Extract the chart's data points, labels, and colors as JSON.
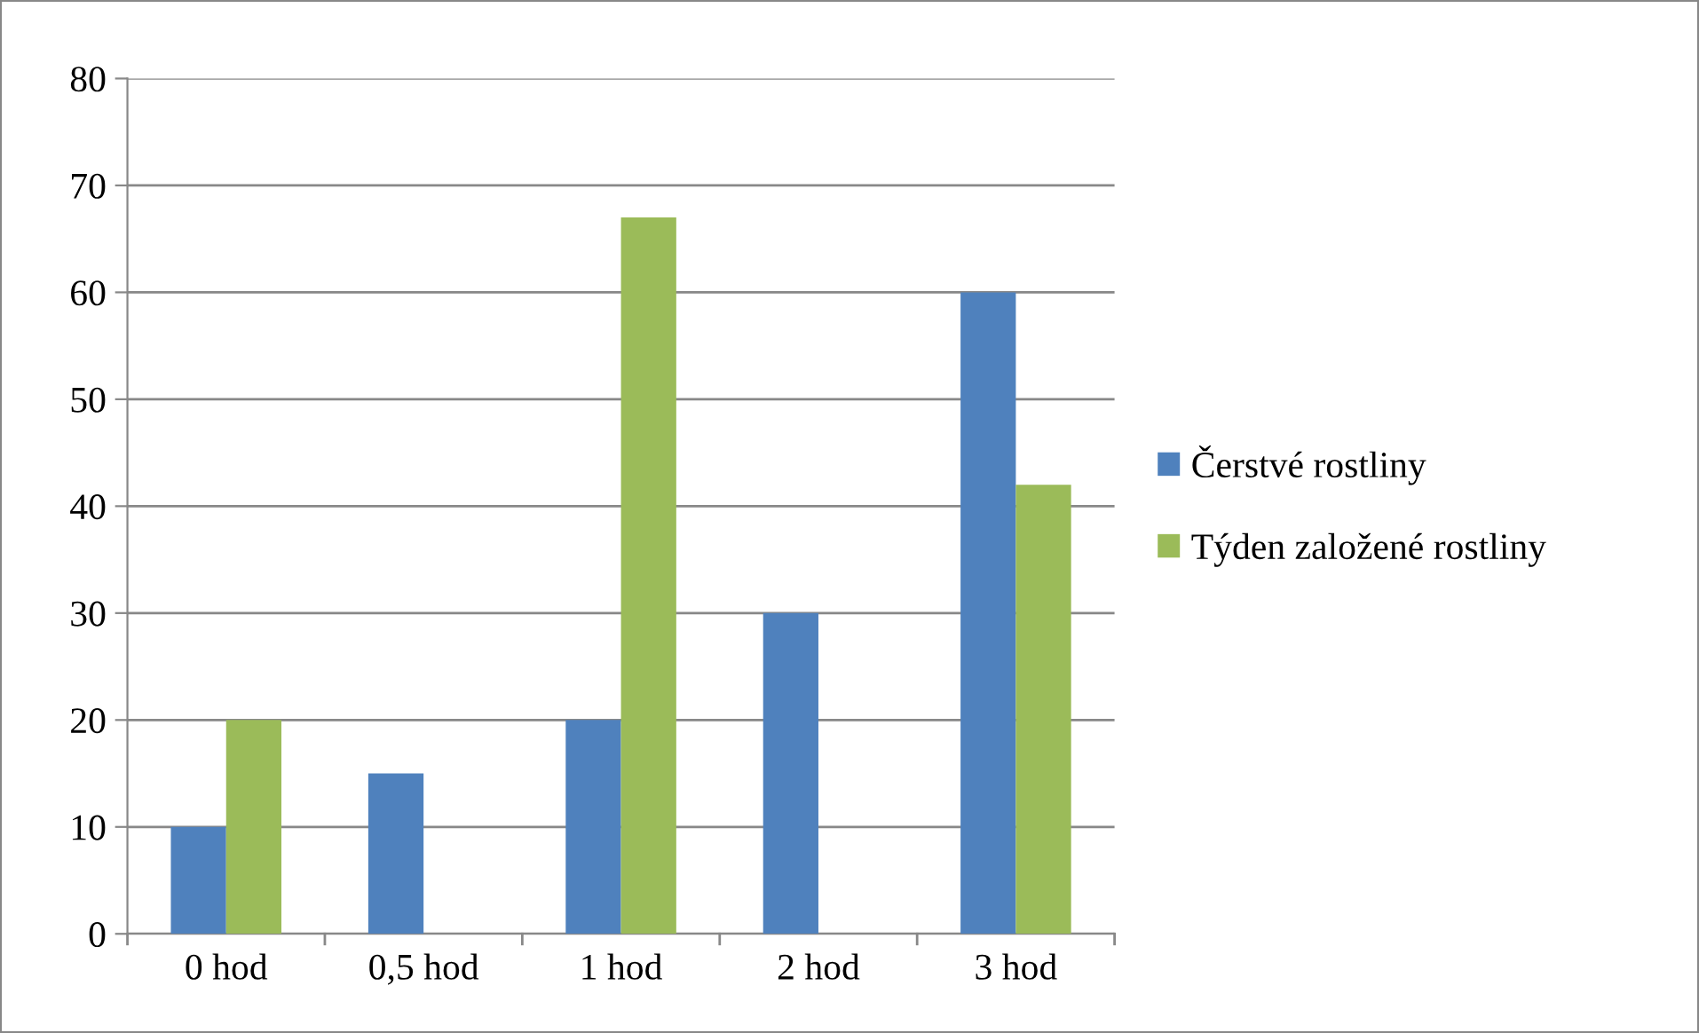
{
  "chart_data": {
    "type": "bar",
    "categories": [
      "0 hod",
      "0,5 hod",
      "1 hod",
      "2 hod",
      "3 hod"
    ],
    "series": [
      {
        "name": "Čerstvé rostliny",
        "color": "#4f81bd",
        "values": [
          10,
          15,
          20,
          30,
          60
        ]
      },
      {
        "name": "Týden založené rostliny",
        "color": "#9bbb59",
        "values": [
          20,
          null,
          67,
          null,
          42
        ]
      }
    ],
    "ylim": [
      0,
      80
    ],
    "yticks": [
      0,
      10,
      20,
      30,
      40,
      50,
      60,
      70,
      80
    ],
    "grid": "y",
    "legend": "right"
  }
}
